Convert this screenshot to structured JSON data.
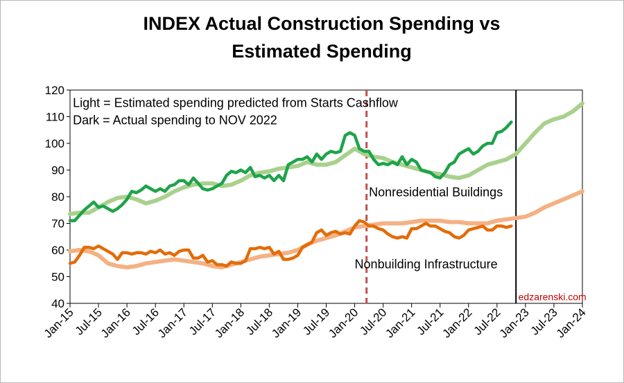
{
  "chart_data": {
    "type": "line",
    "title": [
      "INDEX Actual Construction Spending vs",
      "Estimated Spending"
    ],
    "xlabel": "",
    "ylabel": "",
    "ylim": [
      40,
      120
    ],
    "yticks": [
      40,
      50,
      60,
      70,
      80,
      90,
      100,
      110,
      120
    ],
    "xrange_months": [
      0,
      108
    ],
    "x_unit": "months since Jan-15",
    "xticks": [
      {
        "m": 0,
        "label": "Jan-15"
      },
      {
        "m": 6,
        "label": "Jul-15"
      },
      {
        "m": 12,
        "label": "Jan-16"
      },
      {
        "m": 18,
        "label": "Jul-16"
      },
      {
        "m": 24,
        "label": "Jan-17"
      },
      {
        "m": 30,
        "label": "Jul-17"
      },
      {
        "m": 36,
        "label": "Jan-18"
      },
      {
        "m": 42,
        "label": "Jul-18"
      },
      {
        "m": 48,
        "label": "Jan-19"
      },
      {
        "m": 54,
        "label": "Jul-19"
      },
      {
        "m": 60,
        "label": "Jan-20"
      },
      {
        "m": 66,
        "label": "Jul-20"
      },
      {
        "m": 72,
        "label": "Jan-21"
      },
      {
        "m": 78,
        "label": "Jul-21"
      },
      {
        "m": 84,
        "label": "Jan-22"
      },
      {
        "m": 90,
        "label": "Jul-22"
      },
      {
        "m": 96,
        "label": "Jan-23"
      },
      {
        "m": 102,
        "label": "Jul-23"
      },
      {
        "m": 108,
        "label": "Jan-24"
      }
    ],
    "series": [
      {
        "name": "Nonresidential Buildings - Estimated",
        "color": "#a9d18e",
        "points": [
          [
            0,
            73.5
          ],
          [
            2,
            74
          ],
          [
            4,
            74
          ],
          [
            6,
            76
          ],
          [
            8,
            78
          ],
          [
            10,
            79.5
          ],
          [
            12,
            80
          ],
          [
            14,
            79
          ],
          [
            16,
            77.5
          ],
          [
            18,
            78.5
          ],
          [
            20,
            80
          ],
          [
            22,
            82
          ],
          [
            24,
            83.5
          ],
          [
            26,
            84.5
          ],
          [
            28,
            85
          ],
          [
            30,
            85
          ],
          [
            32,
            84
          ],
          [
            34,
            84.5
          ],
          [
            36,
            86
          ],
          [
            38,
            88
          ],
          [
            40,
            89
          ],
          [
            42,
            89.5
          ],
          [
            44,
            90.5
          ],
          [
            46,
            91
          ],
          [
            48,
            91.5
          ],
          [
            50,
            93
          ],
          [
            52,
            92
          ],
          [
            54,
            92
          ],
          [
            56,
            93
          ],
          [
            58,
            95.5
          ],
          [
            60,
            98
          ],
          [
            62,
            96
          ],
          [
            64,
            95
          ],
          [
            66,
            94.5
          ],
          [
            68,
            93
          ],
          [
            70,
            92
          ],
          [
            72,
            91
          ],
          [
            74,
            90
          ],
          [
            76,
            89
          ],
          [
            78,
            88.5
          ],
          [
            80,
            87.5
          ],
          [
            82,
            87
          ],
          [
            84,
            88
          ],
          [
            86,
            90
          ],
          [
            88,
            92
          ],
          [
            90,
            93
          ],
          [
            92,
            94
          ],
          [
            94,
            96
          ],
          [
            96,
            100
          ],
          [
            98,
            104
          ],
          [
            100,
            107.5
          ],
          [
            102,
            109
          ],
          [
            104,
            110
          ],
          [
            106,
            112
          ],
          [
            108,
            115
          ]
        ]
      },
      {
        "name": "Nonresidential Buildings - Actual",
        "color": "#1fa34a",
        "points": [
          [
            0,
            71
          ],
          [
            1,
            71
          ],
          [
            2,
            73
          ],
          [
            3,
            75
          ],
          [
            4,
            76.5
          ],
          [
            5,
            78
          ],
          [
            6,
            76
          ],
          [
            7,
            76.5
          ],
          [
            8,
            75.5
          ],
          [
            9,
            74.5
          ],
          [
            10,
            75.5
          ],
          [
            11,
            77
          ],
          [
            12,
            79
          ],
          [
            13,
            82
          ],
          [
            14,
            81.5
          ],
          [
            15,
            82.5
          ],
          [
            16,
            84
          ],
          [
            17,
            83
          ],
          [
            18,
            82
          ],
          [
            19,
            83
          ],
          [
            20,
            82
          ],
          [
            21,
            84
          ],
          [
            22,
            84.5
          ],
          [
            23,
            86
          ],
          [
            24,
            86
          ],
          [
            25,
            84.5
          ],
          [
            26,
            87
          ],
          [
            27,
            85
          ],
          [
            28,
            83
          ],
          [
            29,
            82.5
          ],
          [
            30,
            83
          ],
          [
            31,
            84
          ],
          [
            32,
            85
          ],
          [
            33,
            88
          ],
          [
            34,
            89.5
          ],
          [
            35,
            89
          ],
          [
            36,
            90
          ],
          [
            37,
            89
          ],
          [
            38,
            91
          ],
          [
            39,
            87.5
          ],
          [
            40,
            88
          ],
          [
            41,
            87
          ],
          [
            42,
            88
          ],
          [
            43,
            86
          ],
          [
            44,
            88
          ],
          [
            45,
            86
          ],
          [
            46,
            92
          ],
          [
            47,
            93
          ],
          [
            48,
            94
          ],
          [
            49,
            94
          ],
          [
            50,
            95
          ],
          [
            51,
            93
          ],
          [
            52,
            96
          ],
          [
            53,
            94
          ],
          [
            54,
            96
          ],
          [
            55,
            97
          ],
          [
            56,
            96.5
          ],
          [
            57,
            97
          ],
          [
            58,
            103
          ],
          [
            59,
            104
          ],
          [
            60,
            103
          ],
          [
            61,
            98
          ],
          [
            62,
            97
          ],
          [
            63,
            97
          ],
          [
            64,
            94
          ],
          [
            65,
            92
          ],
          [
            66,
            92.5
          ],
          [
            67,
            92
          ],
          [
            68,
            93
          ],
          [
            69,
            92
          ],
          [
            70,
            95
          ],
          [
            71,
            92
          ],
          [
            72,
            94
          ],
          [
            73,
            93
          ],
          [
            74,
            90
          ],
          [
            75,
            89.5
          ],
          [
            76,
            89
          ],
          [
            77,
            87.5
          ],
          [
            78,
            87
          ],
          [
            79,
            89
          ],
          [
            80,
            92
          ],
          [
            81,
            93
          ],
          [
            82,
            96
          ],
          [
            83,
            97
          ],
          [
            84,
            98
          ],
          [
            85,
            96
          ],
          [
            86,
            97
          ],
          [
            87,
            99
          ],
          [
            88,
            100
          ],
          [
            89,
            100
          ],
          [
            90,
            104
          ],
          [
            91,
            104.5
          ],
          [
            92,
            106
          ],
          [
            93,
            108
          ]
        ]
      },
      {
        "name": "Nonbuilding Infrastructure - Estimated",
        "color": "#f4b183",
        "points": [
          [
            0,
            59.5
          ],
          [
            2,
            60
          ],
          [
            4,
            59.5
          ],
          [
            6,
            58
          ],
          [
            8,
            55
          ],
          [
            10,
            54
          ],
          [
            12,
            53.5
          ],
          [
            14,
            54
          ],
          [
            16,
            55
          ],
          [
            18,
            55.5
          ],
          [
            20,
            56
          ],
          [
            22,
            56.5
          ],
          [
            24,
            56
          ],
          [
            26,
            55.5
          ],
          [
            28,
            55
          ],
          [
            30,
            54
          ],
          [
            32,
            53.5
          ],
          [
            34,
            54.5
          ],
          [
            36,
            55.5
          ],
          [
            38,
            56.5
          ],
          [
            40,
            57.5
          ],
          [
            42,
            58
          ],
          [
            44,
            58.5
          ],
          [
            46,
            59
          ],
          [
            48,
            60
          ],
          [
            50,
            62
          ],
          [
            52,
            63.5
          ],
          [
            54,
            64.5
          ],
          [
            56,
            65.5
          ],
          [
            58,
            67
          ],
          [
            60,
            68.5
          ],
          [
            62,
            69
          ],
          [
            64,
            69.5
          ],
          [
            66,
            70
          ],
          [
            68,
            70
          ],
          [
            70,
            70
          ],
          [
            72,
            70.5
          ],
          [
            74,
            71
          ],
          [
            76,
            71
          ],
          [
            78,
            71
          ],
          [
            80,
            70.5
          ],
          [
            82,
            70.5
          ],
          [
            84,
            70
          ],
          [
            86,
            70
          ],
          [
            88,
            70
          ],
          [
            90,
            71
          ],
          [
            92,
            71.5
          ],
          [
            94,
            72
          ],
          [
            96,
            72.5
          ],
          [
            98,
            74
          ],
          [
            100,
            76
          ],
          [
            102,
            77.5
          ],
          [
            104,
            79
          ],
          [
            106,
            80.5
          ],
          [
            108,
            82
          ]
        ]
      },
      {
        "name": "Nonbuilding Infrastructure - Actual",
        "color": "#e36c09",
        "points": [
          [
            0,
            55
          ],
          [
            1,
            55.5
          ],
          [
            2,
            58
          ],
          [
            3,
            61
          ],
          [
            4,
            61
          ],
          [
            5,
            60.5
          ],
          [
            6,
            61.5
          ],
          [
            7,
            60.5
          ],
          [
            8,
            59.5
          ],
          [
            9,
            58.5
          ],
          [
            10,
            56.5
          ],
          [
            11,
            59
          ],
          [
            12,
            59
          ],
          [
            13,
            58.5
          ],
          [
            14,
            59
          ],
          [
            15,
            59
          ],
          [
            16,
            58.5
          ],
          [
            17,
            59.5
          ],
          [
            18,
            59
          ],
          [
            19,
            60
          ],
          [
            20,
            58.5
          ],
          [
            21,
            59
          ],
          [
            22,
            58
          ],
          [
            23,
            59.5
          ],
          [
            24,
            60
          ],
          [
            25,
            60
          ],
          [
            26,
            57
          ],
          [
            27,
            57
          ],
          [
            28,
            58
          ],
          [
            29,
            55.5
          ],
          [
            30,
            56
          ],
          [
            31,
            54.5
          ],
          [
            32,
            54.5
          ],
          [
            33,
            54
          ],
          [
            34,
            55.5
          ],
          [
            35,
            55
          ],
          [
            36,
            55
          ],
          [
            37,
            56
          ],
          [
            38,
            60.5
          ],
          [
            39,
            60.5
          ],
          [
            40,
            61
          ],
          [
            41,
            60.5
          ],
          [
            42,
            61
          ],
          [
            43,
            58.5
          ],
          [
            44,
            59.5
          ],
          [
            45,
            56.5
          ],
          [
            46,
            56.5
          ],
          [
            47,
            57
          ],
          [
            48,
            58
          ],
          [
            49,
            61
          ],
          [
            50,
            62
          ],
          [
            51,
            63
          ],
          [
            52,
            66.5
          ],
          [
            53,
            67.5
          ],
          [
            54,
            65.5
          ],
          [
            55,
            66.5
          ],
          [
            56,
            67
          ],
          [
            57,
            66
          ],
          [
            58,
            66.5
          ],
          [
            59,
            66
          ],
          [
            60,
            69
          ],
          [
            61,
            71
          ],
          [
            62,
            70.5
          ],
          [
            63,
            69
          ],
          [
            64,
            69
          ],
          [
            65,
            68
          ],
          [
            66,
            67.5
          ],
          [
            67,
            66
          ],
          [
            68,
            65
          ],
          [
            69,
            64.5
          ],
          [
            70,
            65
          ],
          [
            71,
            64.5
          ],
          [
            72,
            68
          ],
          [
            73,
            68
          ],
          [
            74,
            69
          ],
          [
            75,
            70
          ],
          [
            76,
            69
          ],
          [
            77,
            69
          ],
          [
            78,
            68
          ],
          [
            79,
            67
          ],
          [
            80,
            66.5
          ],
          [
            81,
            65
          ],
          [
            82,
            64.5
          ],
          [
            83,
            65.5
          ],
          [
            84,
            67.5
          ],
          [
            85,
            68
          ],
          [
            86,
            68.5
          ],
          [
            87,
            69
          ],
          [
            88,
            67.5
          ],
          [
            89,
            67.5
          ],
          [
            90,
            69
          ],
          [
            91,
            69
          ],
          [
            92,
            68.5
          ],
          [
            93,
            69
          ]
        ]
      }
    ],
    "annotations": [
      {
        "text": "Light = Estimated spending predicted from Starts Cashflow",
        "m": 0.6,
        "y": 115.5
      },
      {
        "text": "Dark = Actual spending to  NOV 2022",
        "m": 0.6,
        "y": 109
      },
      {
        "text": "Nonresidential Buildings",
        "m": 63,
        "y": 82
      },
      {
        "text": "Nonbuilding Infrastructure",
        "m": 60,
        "y": 55
      },
      {
        "text": "edzarenski.com",
        "m": 94.5,
        "y": 43,
        "kind": "credit"
      }
    ],
    "reference_lines": [
      {
        "name": "covid-marker",
        "m": 62.5,
        "style": "dashed",
        "color": "#c0504d"
      },
      {
        "name": "data-end",
        "m": 94,
        "style": "solid",
        "color": "#000000"
      }
    ]
  }
}
